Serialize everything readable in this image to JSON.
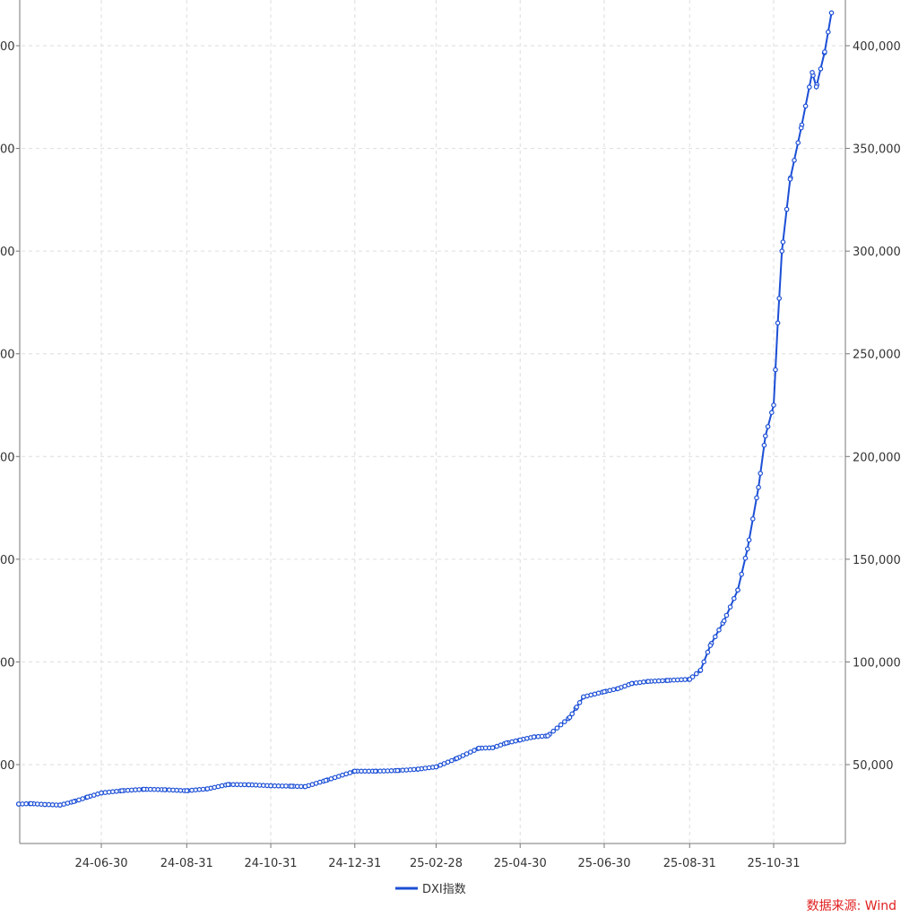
{
  "chart_data": {
    "type": "line",
    "title": "",
    "xlabel": "",
    "ylabel": "",
    "x_tick_labels": [
      "24-06-30",
      "24-08-31",
      "24-10-31",
      "24-12-31",
      "25-02-28",
      "25-04-30",
      "25-06-30",
      "25-08-31",
      "25-10-31"
    ],
    "y_tick_values": [
      50000,
      100000,
      150000,
      200000,
      250000,
      300000,
      350000,
      400000
    ],
    "y_tick_labels": [
      "50,000",
      "100,000",
      "150,000",
      "200,000",
      "250,000",
      "300,000",
      "350,000",
      "400,000"
    ],
    "left_y_tick_labels": [
      "00",
      "00",
      "00",
      "00",
      "00",
      "00",
      "00",
      "00"
    ],
    "ylim": [
      10000,
      420000
    ],
    "xlim": [
      "2024-05-01",
      "2025-12-12"
    ],
    "grid": true,
    "legend_position": "bottom-center",
    "series": [
      {
        "name": "DXI指数",
        "color": "#1c4fd6",
        "points": [
          [
            "2024-05-01",
            30800
          ],
          [
            "2024-05-10",
            31000
          ],
          [
            "2024-05-20",
            30600
          ],
          [
            "2024-05-31",
            30300
          ],
          [
            "2024-06-10",
            32000
          ],
          [
            "2024-06-20",
            34200
          ],
          [
            "2024-06-30",
            36200
          ],
          [
            "2024-07-15",
            37300
          ],
          [
            "2024-07-31",
            38000
          ],
          [
            "2024-08-15",
            37800
          ],
          [
            "2024-08-31",
            37300
          ],
          [
            "2024-09-15",
            38200
          ],
          [
            "2024-09-30",
            40300
          ],
          [
            "2024-10-15",
            40200
          ],
          [
            "2024-10-31",
            39700
          ],
          [
            "2024-11-15",
            39500
          ],
          [
            "2024-11-25",
            39300
          ],
          [
            "2024-12-10",
            42300
          ],
          [
            "2024-12-31",
            46800
          ],
          [
            "2025-01-15",
            46800
          ],
          [
            "2025-01-31",
            47100
          ],
          [
            "2025-02-15",
            47800
          ],
          [
            "2025-02-28",
            48900
          ],
          [
            "2025-03-15",
            53000
          ],
          [
            "2025-03-31",
            58000
          ],
          [
            "2025-04-10",
            58200
          ],
          [
            "2025-04-20",
            60500
          ],
          [
            "2025-04-30",
            62000
          ],
          [
            "2025-05-10",
            63500
          ],
          [
            "2025-05-20",
            64000
          ],
          [
            "2025-06-05",
            73000
          ],
          [
            "2025-06-10",
            78000
          ],
          [
            "2025-06-15",
            83000
          ],
          [
            "2025-06-30",
            85500
          ],
          [
            "2025-07-10",
            87000
          ],
          [
            "2025-07-20",
            89500
          ],
          [
            "2025-08-01",
            90500
          ],
          [
            "2025-08-15",
            91000
          ],
          [
            "2025-08-31",
            91500
          ],
          [
            "2025-09-08",
            96000
          ],
          [
            "2025-09-15",
            108000
          ],
          [
            "2025-09-25",
            120000
          ],
          [
            "2025-10-05",
            135000
          ],
          [
            "2025-10-12",
            155000
          ],
          [
            "2025-10-20",
            185000
          ],
          [
            "2025-10-25",
            210000
          ],
          [
            "2025-10-31",
            225000
          ],
          [
            "2025-11-03",
            265000
          ],
          [
            "2025-11-06",
            300000
          ],
          [
            "2025-11-12",
            335000
          ],
          [
            "2025-11-20",
            360000
          ],
          [
            "2025-11-28",
            387000
          ],
          [
            "2025-12-01",
            380000
          ],
          [
            "2025-12-07",
            397000
          ],
          [
            "2025-12-12",
            416000
          ]
        ]
      }
    ]
  },
  "source_text": "数据来源: Wind"
}
